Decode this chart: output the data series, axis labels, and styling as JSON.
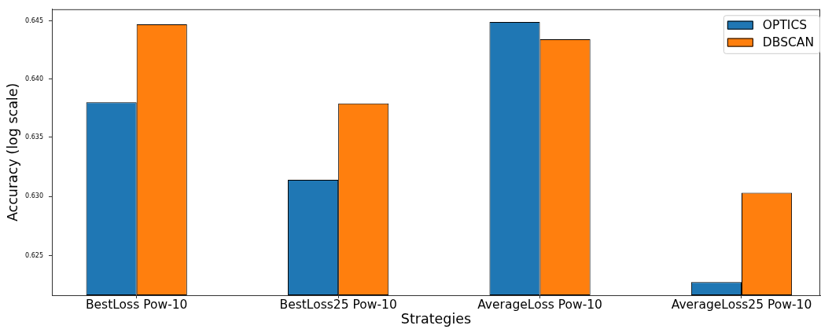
{
  "chart_data": {
    "type": "bar",
    "xlabel": "Strategies",
    "ylabel": "Accuracy (log scale)",
    "categories": [
      "BestLoss Pow-10",
      "BestLoss25 Pow-10",
      "AverageLoss Pow-10",
      "AverageLoss25 Pow-10"
    ],
    "series": [
      {
        "name": "OPTICS",
        "color": "#1f77b4",
        "values": [
          0.638,
          0.6314,
          0.6449,
          0.6228
        ]
      },
      {
        "name": "DBSCAN",
        "color": "#ff7f0e",
        "values": [
          0.6447,
          0.6379,
          0.6434,
          0.6303
        ]
      }
    ],
    "ylim": [
      0.6217,
      0.646
    ],
    "yticks": [
      0.625,
      {
        "value": 0.63,
        "label": "0.630"
      },
      0.635,
      {
        "value": 0.64,
        "label": "0.640"
      },
      0.645
    ],
    "log": true,
    "legend": "top right"
  }
}
